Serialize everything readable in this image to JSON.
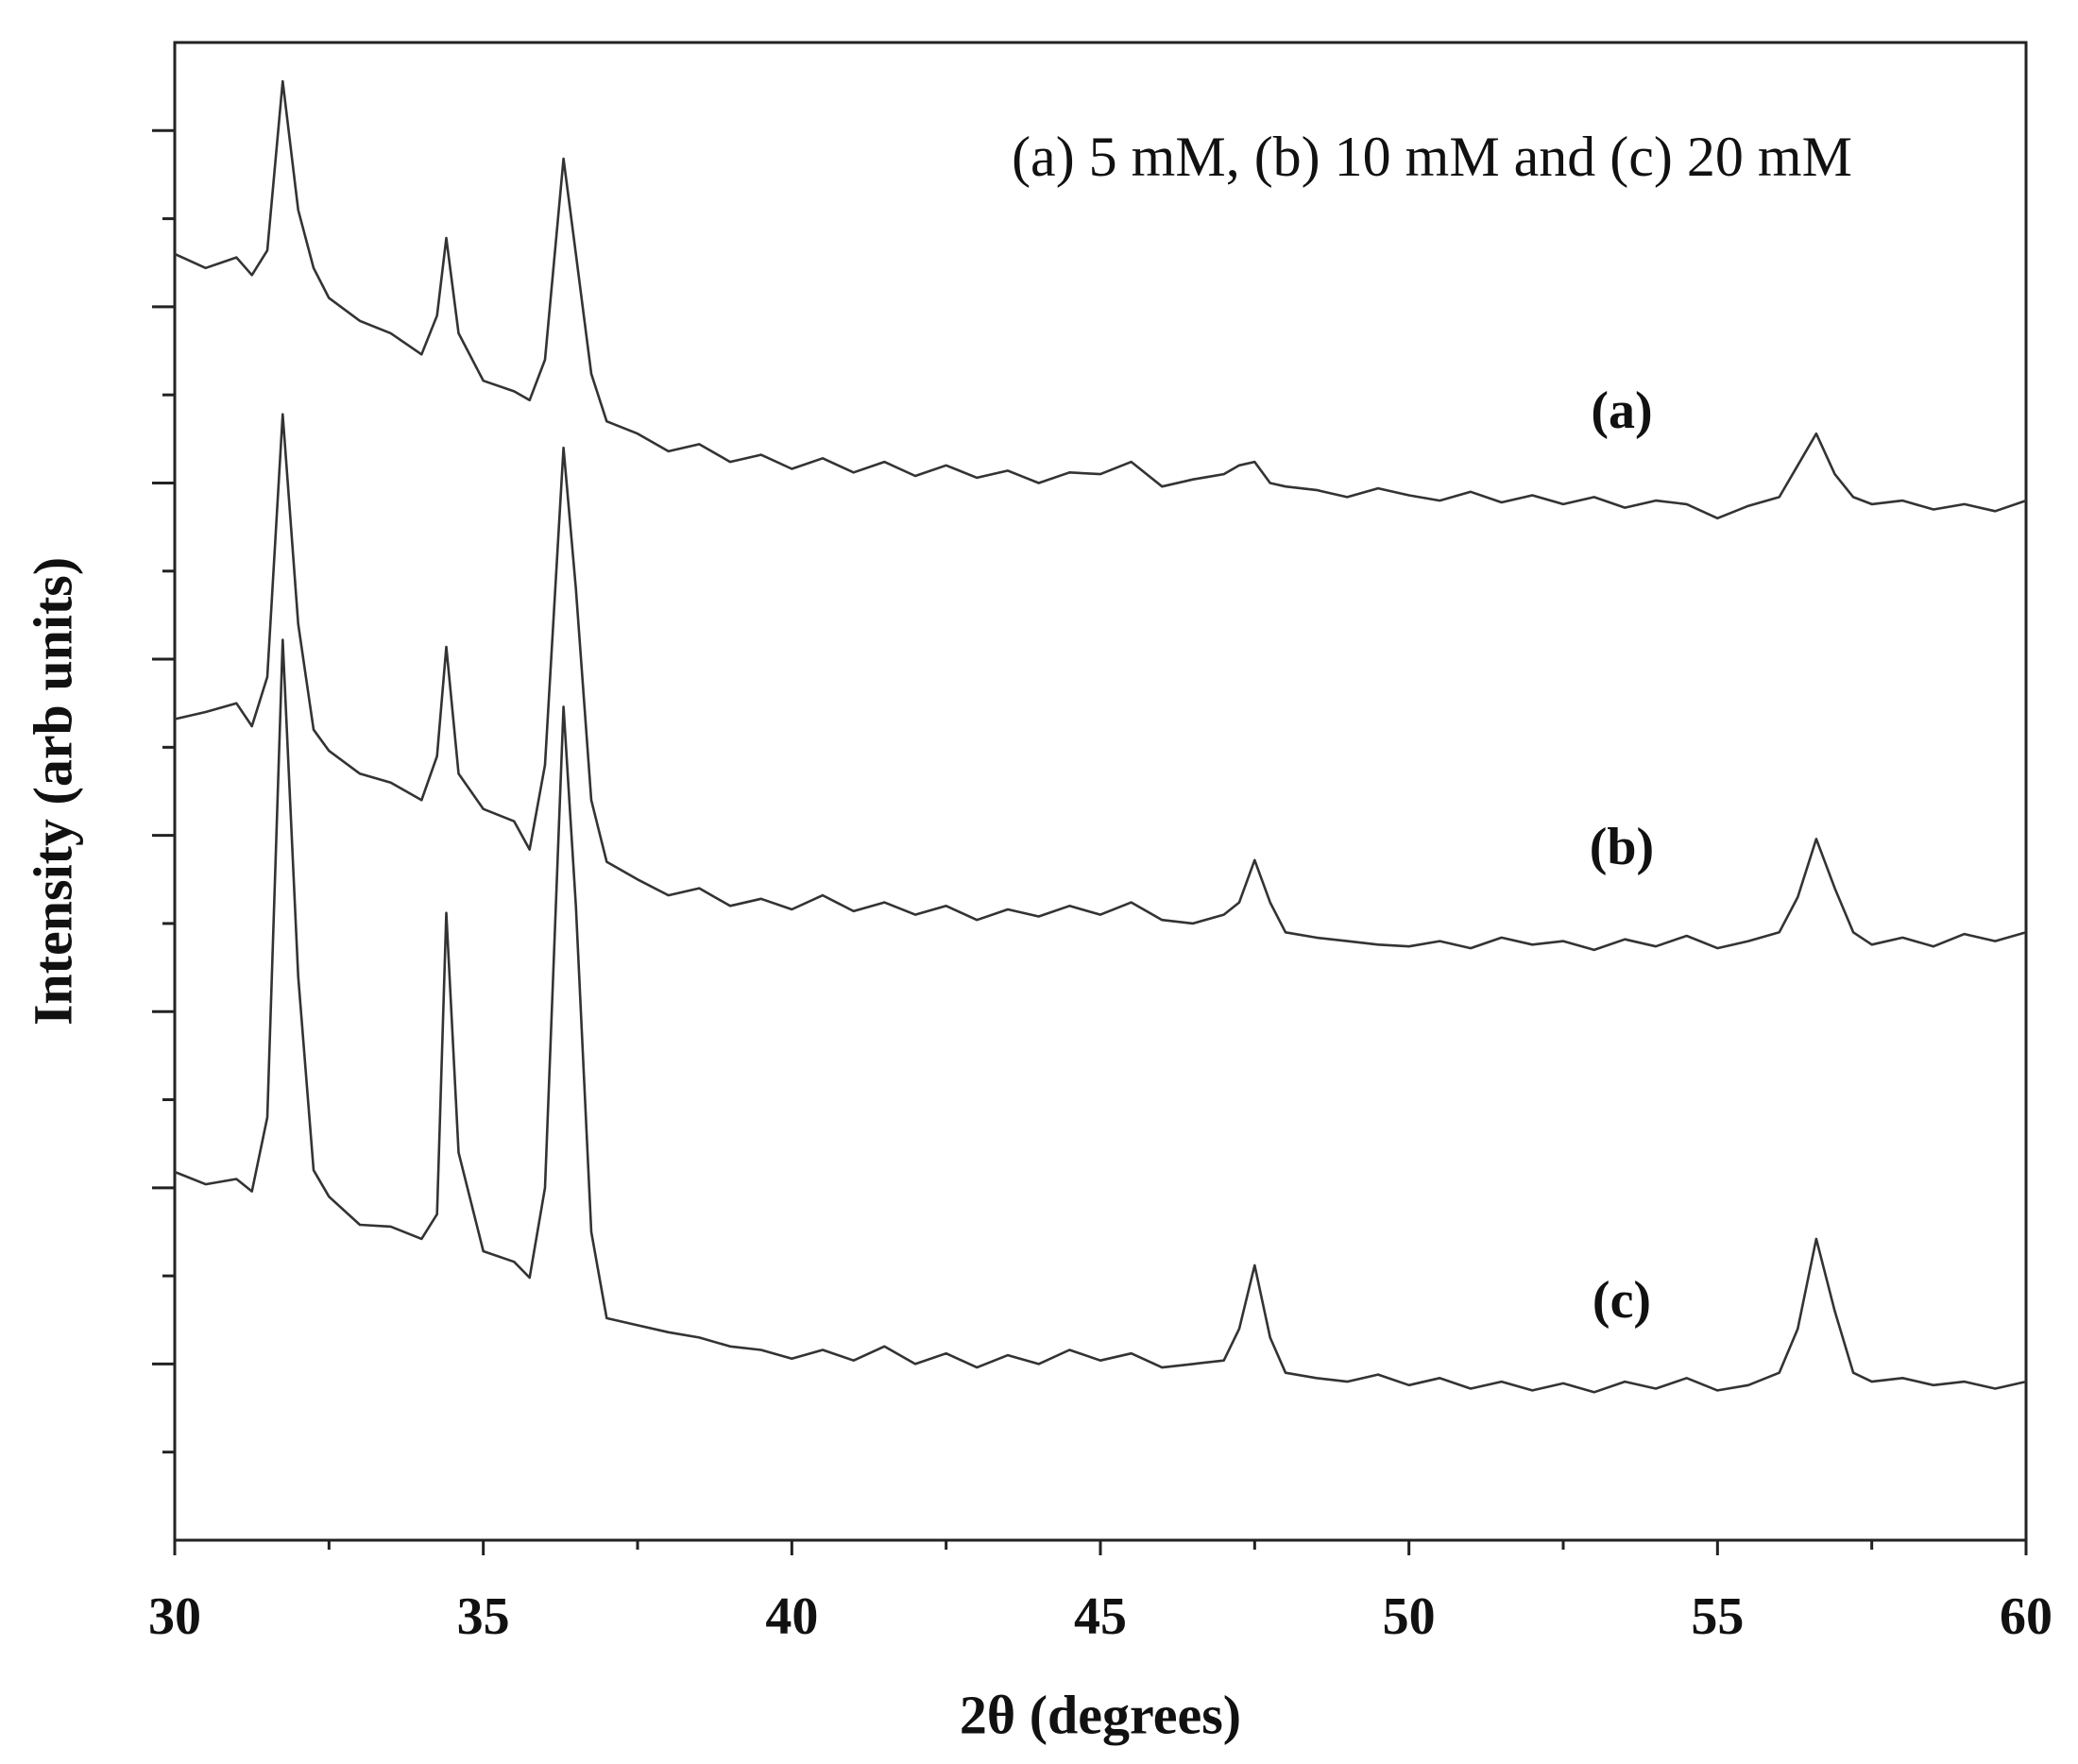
{
  "chart_data": {
    "type": "line",
    "title": "(a) 5 mM, (b) 10 mM and (c) 20 mM",
    "x_label": "2θ (degrees)",
    "y_label": "Intensity (arb units)",
    "xlim": [
      30,
      60
    ],
    "ylim": [
      0,
      8.5
    ],
    "xticks": [
      30,
      35,
      40,
      45,
      50,
      55,
      60
    ],
    "xminor": [
      32.5,
      37.5,
      42.5,
      47.5,
      52.5,
      57.5
    ],
    "yticks": [
      1,
      2,
      3,
      4,
      5,
      6,
      7,
      8
    ],
    "yminor": [
      0.5,
      1.5,
      2.5,
      3.5,
      4.5,
      5.5,
      6.5,
      7.5
    ],
    "x": [
      30,
      30.5,
      31,
      31.25,
      31.5,
      31.75,
      32,
      32.25,
      32.5,
      33,
      33.5,
      34,
      34.25,
      34.4,
      34.6,
      35,
      35.5,
      35.75,
      36,
      36.3,
      36.5,
      36.75,
      37,
      37.5,
      38,
      38.5,
      39,
      39.5,
      40,
      40.5,
      41,
      41.5,
      42,
      42.5,
      43,
      43.5,
      44,
      44.5,
      45,
      45.5,
      46,
      46.5,
      47,
      47.25,
      47.5,
      47.75,
      48,
      48.5,
      49,
      49.5,
      50,
      50.5,
      51,
      51.5,
      52,
      52.5,
      53,
      53.5,
      54,
      54.5,
      55,
      55.5,
      56,
      56.3,
      56.6,
      56.9,
      57.2,
      57.5,
      58,
      58.5,
      59,
      59.5,
      60
    ],
    "series": [
      {
        "name": "(a)",
        "color": "#333333",
        "values": [
          7.3,
          7.22,
          7.28,
          7.18,
          7.32,
          8.28,
          7.55,
          7.22,
          7.05,
          6.92,
          6.85,
          6.73,
          6.95,
          7.39,
          6.85,
          6.58,
          6.52,
          6.47,
          6.7,
          7.84,
          7.3,
          6.62,
          6.35,
          6.28,
          6.18,
          6.22,
          6.12,
          6.16,
          6.08,
          6.14,
          6.06,
          6.12,
          6.04,
          6.1,
          6.03,
          6.07,
          6.0,
          6.06,
          6.05,
          6.12,
          5.98,
          6.02,
          6.05,
          6.1,
          6.12,
          6.0,
          5.98,
          5.96,
          5.92,
          5.97,
          5.93,
          5.9,
          5.95,
          5.89,
          5.93,
          5.88,
          5.92,
          5.86,
          5.9,
          5.88,
          5.8,
          5.87,
          5.92,
          6.1,
          6.28,
          6.05,
          5.92,
          5.88,
          5.9,
          5.85,
          5.88,
          5.84,
          5.9
        ]
      },
      {
        "name": "(b)",
        "color": "#333333",
        "values": [
          4.66,
          4.7,
          4.75,
          4.62,
          4.9,
          6.39,
          5.2,
          4.6,
          4.48,
          4.35,
          4.3,
          4.2,
          4.45,
          5.07,
          4.35,
          4.15,
          4.08,
          3.92,
          4.4,
          6.2,
          5.4,
          4.2,
          3.85,
          3.75,
          3.66,
          3.7,
          3.6,
          3.64,
          3.58,
          3.66,
          3.57,
          3.62,
          3.55,
          3.6,
          3.52,
          3.58,
          3.54,
          3.6,
          3.55,
          3.62,
          3.52,
          3.5,
          3.55,
          3.62,
          3.86,
          3.62,
          3.45,
          3.42,
          3.4,
          3.38,
          3.37,
          3.4,
          3.36,
          3.42,
          3.38,
          3.4,
          3.35,
          3.41,
          3.37,
          3.43,
          3.36,
          3.4,
          3.45,
          3.65,
          3.98,
          3.7,
          3.45,
          3.38,
          3.42,
          3.37,
          3.44,
          3.4,
          3.45
        ]
      },
      {
        "name": "(c)",
        "color": "#333333",
        "values": [
          2.09,
          2.02,
          2.05,
          1.98,
          2.4,
          5.11,
          3.2,
          2.1,
          1.95,
          1.79,
          1.78,
          1.71,
          1.85,
          3.56,
          2.2,
          1.64,
          1.58,
          1.49,
          2.0,
          4.73,
          3.6,
          1.75,
          1.26,
          1.22,
          1.18,
          1.15,
          1.1,
          1.08,
          1.03,
          1.08,
          1.02,
          1.1,
          1.0,
          1.06,
          0.98,
          1.05,
          1.0,
          1.08,
          1.02,
          1.06,
          0.98,
          1.0,
          1.02,
          1.2,
          1.56,
          1.15,
          0.95,
          0.92,
          0.9,
          0.94,
          0.88,
          0.92,
          0.86,
          0.9,
          0.85,
          0.89,
          0.84,
          0.9,
          0.86,
          0.92,
          0.85,
          0.88,
          0.95,
          1.2,
          1.71,
          1.3,
          0.95,
          0.9,
          0.92,
          0.88,
          0.9,
          0.86,
          0.9
        ]
      }
    ]
  }
}
